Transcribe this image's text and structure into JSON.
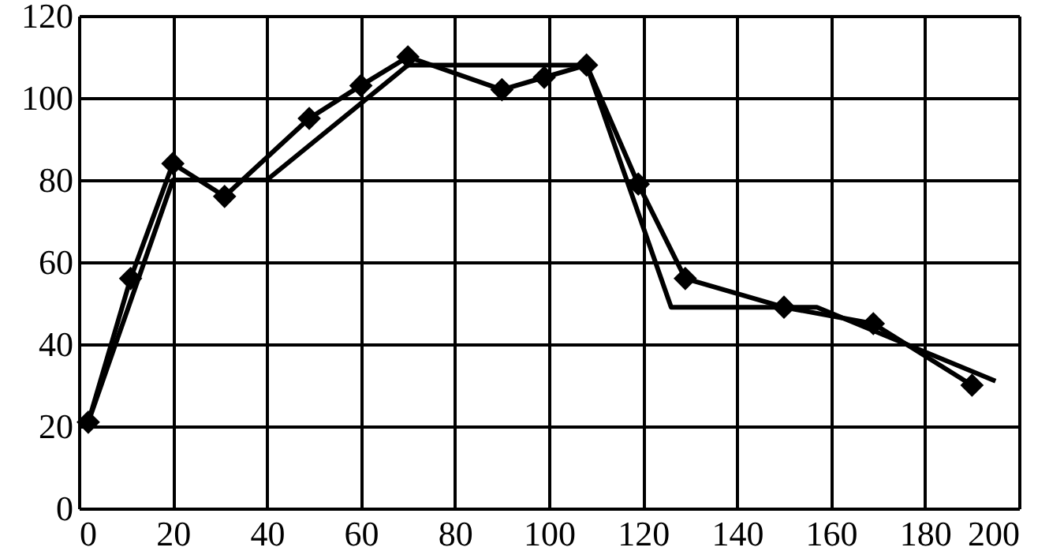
{
  "chart_data": {
    "type": "line",
    "xlim": [
      0,
      200
    ],
    "ylim": [
      0,
      120
    ],
    "xticks": [
      0,
      20,
      40,
      60,
      80,
      100,
      120,
      140,
      160,
      180,
      200
    ],
    "yticks": [
      0,
      20,
      40,
      60,
      80,
      100,
      120
    ],
    "grid": true,
    "line_style": "solid",
    "series": [
      {
        "color": "#000000",
        "marker": "diamond",
        "x": [
          2,
          11,
          20,
          31,
          49,
          60,
          70,
          90,
          99,
          108,
          119,
          129,
          150,
          169,
          190
        ],
        "values": [
          21,
          56,
          84,
          76,
          95,
          103,
          110,
          102,
          105,
          108,
          79,
          56,
          49,
          45,
          30
        ]
      },
      {
        "color": "#000000",
        "marker": "none",
        "x": [
          2,
          20,
          40,
          70,
          108,
          126,
          157,
          195
        ],
        "values": [
          21,
          80,
          80,
          108,
          108,
          49,
          49,
          31
        ]
      }
    ]
  }
}
